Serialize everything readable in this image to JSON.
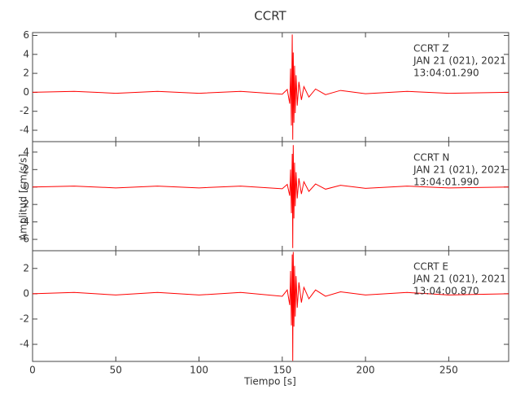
{
  "chart_data": {
    "type": "line",
    "title": "CCRT",
    "x_label": "Tiempo [s]",
    "y_label": "Amplitud [cm/s/s]",
    "xlim": [
      0,
      286
    ],
    "xticks": [
      0,
      50,
      100,
      150,
      200,
      250
    ],
    "x": [
      0,
      25,
      50,
      75,
      100,
      125,
      150,
      153,
      154.5,
      155,
      155.5,
      156,
      156.3,
      156.6,
      157,
      157.4,
      157.8,
      158.3,
      159,
      160,
      161.5,
      163,
      166,
      170,
      176,
      185,
      200,
      225,
      250,
      286
    ],
    "panels": [
      {
        "color": "#ff0000",
        "annotations": [
          "CCRT   Z",
          "JAN 21 (021), 2021",
          "13:04:01.290"
        ],
        "ylim": [
          -5.2,
          6.3
        ],
        "yticks": [
          -4,
          -2,
          0,
          2,
          4,
          6
        ],
        "values": [
          0,
          0.1,
          -0.1,
          0.1,
          -0.1,
          0.1,
          -0.2,
          0.3,
          -1.2,
          2.5,
          -3.5,
          6.1,
          -5,
          4.2,
          -3.2,
          2.8,
          -2.2,
          1.8,
          -1.4,
          1.1,
          -0.8,
          0.6,
          -0.5,
          0.35,
          -0.25,
          0.2,
          -0.15,
          0.1,
          -0.1,
          0
        ]
      },
      {
        "color": "#ff0000",
        "annotations": [
          "CCRT   N",
          "JAN 21 (021), 2021",
          "13:04:01.990"
        ],
        "ylim": [
          -7.3,
          5.2
        ],
        "yticks": [
          -6,
          -4,
          -2,
          0,
          2,
          4
        ],
        "values": [
          0,
          0.1,
          -0.1,
          0.1,
          -0.1,
          0.1,
          -0.2,
          0.3,
          -1,
          2,
          -3,
          3.8,
          -7,
          4.8,
          -3.6,
          2.8,
          -2.2,
          1.7,
          -1.3,
          1,
          -0.8,
          0.6,
          -0.5,
          0.35,
          -0.25,
          0.2,
          -0.15,
          0.1,
          -0.1,
          0
        ]
      },
      {
        "color": "#ff0000",
        "annotations": [
          "CCRT   E",
          "JAN 21 (021), 2021",
          "13:04:00.870"
        ],
        "ylim": [
          -5.35,
          3.4
        ],
        "yticks": [
          -4,
          -2,
          0,
          2
        ],
        "values": [
          0,
          0.1,
          -0.1,
          0.1,
          -0.1,
          0.1,
          -0.2,
          0.3,
          -0.9,
          1.8,
          -2.5,
          3.1,
          -5.3,
          3.3,
          -2.6,
          2.2,
          -1.8,
          1.4,
          -1.1,
          0.9,
          -0.7,
          0.5,
          -0.4,
          0.3,
          -0.2,
          0.15,
          -0.1,
          0.1,
          -0.1,
          0
        ]
      }
    ]
  }
}
